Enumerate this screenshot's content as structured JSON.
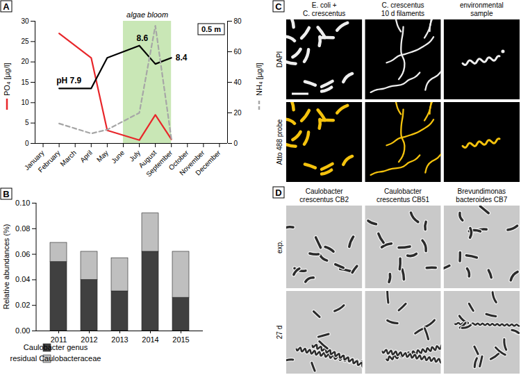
{
  "chart_data": [
    {
      "type": "line",
      "title": "A",
      "categories": [
        "January",
        "February",
        "March",
        "April",
        "May",
        "June",
        "July",
        "August",
        "September",
        "October",
        "November",
        "December"
      ],
      "ylabel": "PO₄ [µg/l]",
      "y2label": "NH₄ [µg/l]",
      "ylim": [
        0,
        30
      ],
      "yticks": [
        0,
        5,
        10,
        15,
        20,
        25,
        30
      ],
      "y2lim": [
        0,
        80
      ],
      "y2ticks": [
        0,
        20,
        40,
        60,
        80
      ],
      "y3lim": [
        7,
        9
      ],
      "annotations": [
        {
          "text": "algae bloom",
          "from": "June",
          "to": "September"
        },
        {
          "text": "0.5 m"
        }
      ],
      "series": [
        {
          "color": "#e8262a",
          "axis": "y",
          "line_style": "solid",
          "x": [
            "February",
            "April",
            "May",
            "July",
            "August",
            "September"
          ],
          "values": [
            27,
            21,
            3.2,
            0.8,
            7,
            1
          ]
        },
        {
          "color": "#000000",
          "axis": "y3",
          "line_style": "solid",
          "x": [
            "February",
            "April",
            "May",
            "July",
            "August",
            "September"
          ],
          "values": [
            7.9,
            7.9,
            8.4,
            8.6,
            8.3,
            8.4
          ],
          "value_labels": [
            "pH 7.9",
            null,
            null,
            "8.6",
            null,
            "8.4"
          ]
        },
        {
          "color": "#a6a6a6",
          "axis": "y2",
          "line_style": "dashed",
          "x": [
            "February",
            "April",
            "May",
            "July",
            "August",
            "September"
          ],
          "values": [
            13,
            6.5,
            9,
            20,
            77,
            3
          ]
        }
      ]
    },
    {
      "type": "bar",
      "title": "B",
      "categories": [
        "2011",
        "2012",
        "2013",
        "2014",
        "2015"
      ],
      "ylabel": "Relative abundances (%)",
      "ylim": [
        0,
        0.1
      ],
      "yticks": [
        {
          "value": 0,
          "label": "0.00"
        },
        0.02,
        0.04,
        0.06,
        0.08,
        {
          "value": 0.1,
          "label": "0.10"
        }
      ],
      "stacked": true,
      "legend": "bottom",
      "series": [
        {
          "name": "Caulobacter genus",
          "color": "#404040",
          "values": [
            0.054,
            0.04,
            0.031,
            0.062,
            0.026
          ]
        },
        {
          "name": "residual Caulobacteraceae",
          "color": "#bfbfbf",
          "values": [
            0.015,
            0.022,
            0.026,
            0.03,
            0.036
          ]
        }
      ]
    }
  ],
  "image_panels": [
    {
      "title": "C",
      "columns": [
        [
          "E. coli +",
          "C. crescentus"
        ],
        [
          "C. crescentus",
          "10 d filaments"
        ],
        [
          "environmental",
          "sample"
        ]
      ],
      "rows": [
        "DAPI",
        "Atto 488 probe"
      ]
    },
    {
      "title": "D",
      "columns": [
        [
          "Caulobacter",
          "crescentus CB2"
        ],
        [
          "Caulobacter",
          "crescentus CB51"
        ],
        [
          "Brevundimonas",
          "bacteroides CB7"
        ]
      ],
      "rows": [
        "exp.",
        "27 d"
      ]
    }
  ]
}
